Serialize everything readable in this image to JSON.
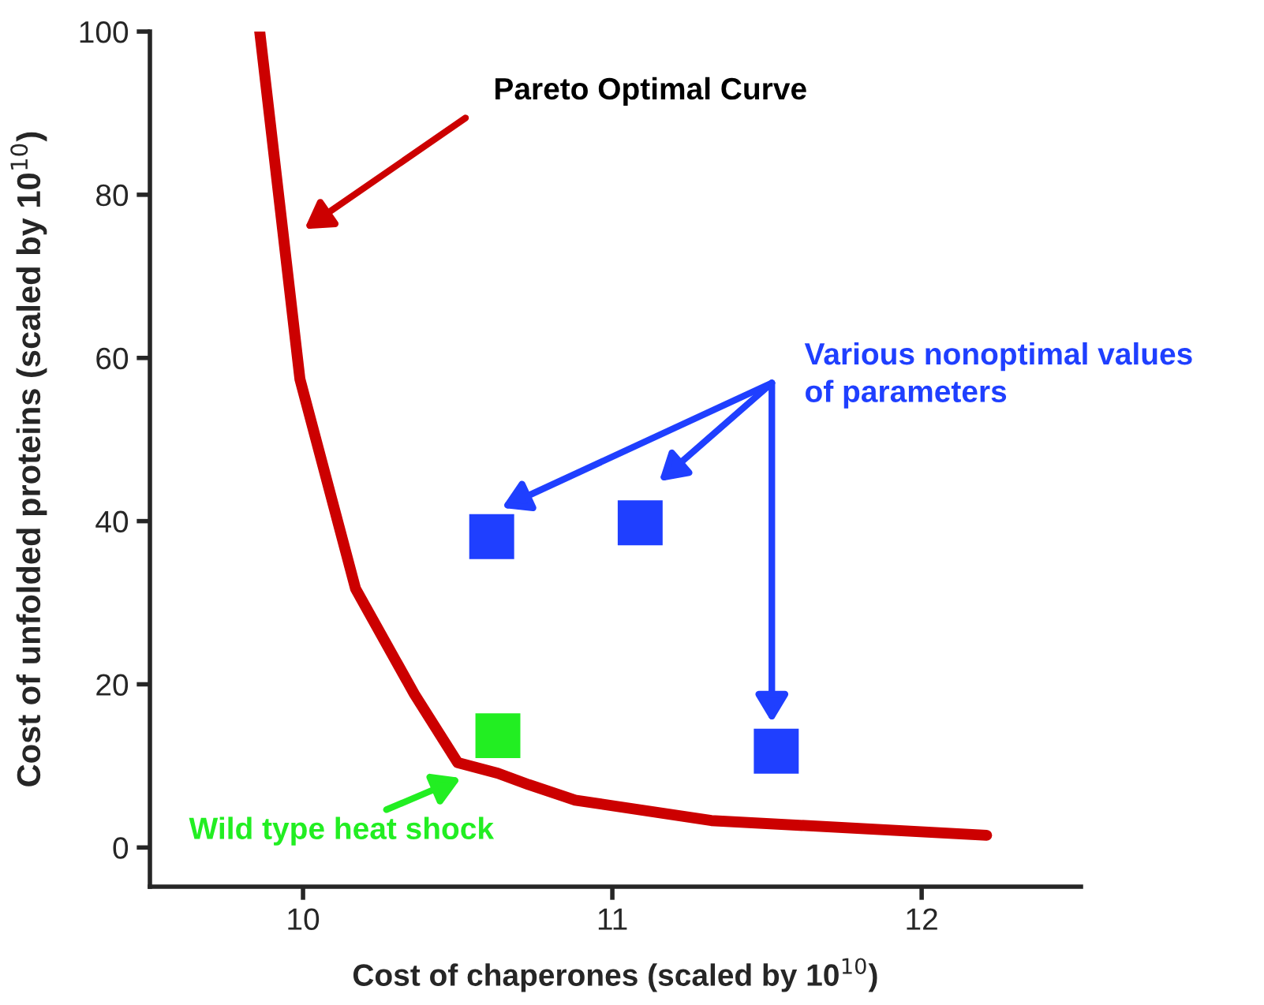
{
  "chart_data": {
    "type": "line",
    "xlabel": "Cost of chaperones (scaled by 10$^{10}$)",
    "ylabel": "Cost of unfolded proteins (scaled by 10$^{10}$)",
    "xlim": [
      9.505,
      12.515
    ],
    "ylim": [
      -4.8,
      100
    ],
    "xticks": [
      10,
      11,
      12
    ],
    "yticks": [
      0,
      20,
      40,
      60,
      80,
      100
    ],
    "grid": false,
    "legend": false,
    "series": [
      {
        "color": "#cc0000",
        "marker": "none",
        "line_style": "solid",
        "x": [
          9.86,
          9.99,
          10.17,
          10.36,
          10.5,
          10.63,
          10.73,
          10.88,
          11.32,
          12.21
        ],
        "values": [
          100,
          57.4,
          31.7,
          18.8,
          10.4,
          9.1,
          7.7,
          5.8,
          3.3,
          1.5
        ]
      },
      {
        "type": "scatter",
        "color": "#1f3fff",
        "marker": "square",
        "x": [
          10.61,
          11.09,
          11.53
        ],
        "values": [
          38.1,
          39.8,
          11.8
        ]
      },
      {
        "type": "scatter",
        "color": "#22ee22",
        "marker": "square",
        "x": [
          10.63
        ],
        "values": [
          13.7
        ]
      }
    ],
    "annotations": [
      "Pareto Optimal Curve",
      "Various nonoptimal values\nof parameters",
      "Wild type heat shock"
    ]
  }
}
